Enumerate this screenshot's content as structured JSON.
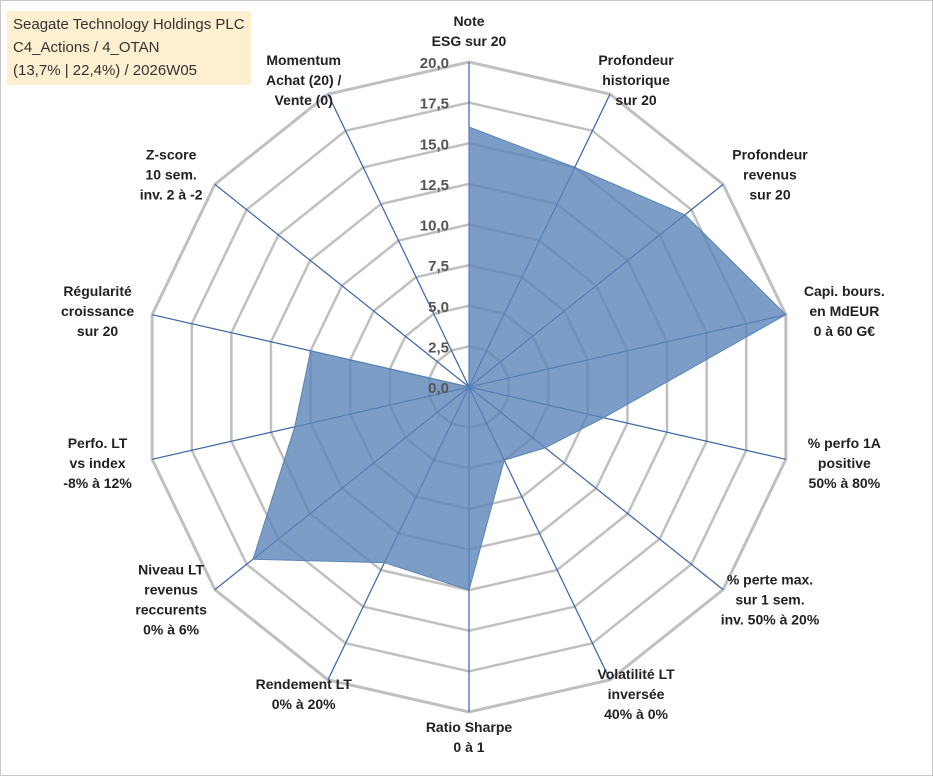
{
  "title_box": {
    "line1": "Seagate Technology Holdings PLC",
    "line2": "C4_Actions / 4_OTAN",
    "line3": "(13,7% | 22,4%) / 2026W05"
  },
  "colors": {
    "fill": "#5b84b8",
    "axis": "#3a63a8",
    "grid": "#c0c0c0",
    "background": "#ffffff"
  },
  "chart_data": {
    "type": "radar",
    "rmax": 20,
    "ticks": [
      0,
      2.5,
      5,
      7.5,
      10,
      12.5,
      15,
      17.5,
      20
    ],
    "tick_labels": [
      "0,0",
      "2,5",
      "5,0",
      "7,5",
      "10,0",
      "12,5",
      "15,0",
      "17,5",
      "20,0"
    ],
    "axes": [
      {
        "label": [
          "Note",
          "ESG sur 20"
        ],
        "value": 16
      },
      {
        "label": [
          "Profondeur",
          "historique",
          "sur 20"
        ],
        "value": 15
      },
      {
        "label": [
          "Profondeur",
          "revenus",
          "sur 20"
        ],
        "value": 17
      },
      {
        "label": [
          "Capi. bours.",
          "en MdEUR",
          "0 à 60 G€"
        ],
        "value": 20
      },
      {
        "label": [
          "% perfo 1A",
          "positive",
          "50% à 80%"
        ],
        "value": 8.5
      },
      {
        "label": [
          "% perte max.",
          "sur 1 sem.",
          "inv. 50% à 20%"
        ],
        "value": 6
      },
      {
        "label": [
          "Volatilité LT",
          "inversée",
          "40% à 0%"
        ],
        "value": 5
      },
      {
        "label": [
          "Ratio Sharpe",
          "0 à 1"
        ],
        "value": 12.5
      },
      {
        "label": [
          "Rendement LT",
          "0% à 20%"
        ],
        "value": 12
      },
      {
        "label": [
          "Niveau LT",
          "revenus",
          "reccurents",
          "0% à 6%"
        ],
        "value": 17
      },
      {
        "label": [
          "Perfo. LT",
          "vs index",
          "-8% à 12%"
        ],
        "value": 11
      },
      {
        "label": [
          "Régularité",
          "croissance",
          "sur 20"
        ],
        "value": 10
      },
      {
        "label": [
          "Z-score",
          "10 sem.",
          "inv. 2 à -2"
        ],
        "value": 0
      },
      {
        "label": [
          "Momentum",
          "Achat (20) /",
          "Vente (0)"
        ],
        "value": 0
      }
    ]
  }
}
